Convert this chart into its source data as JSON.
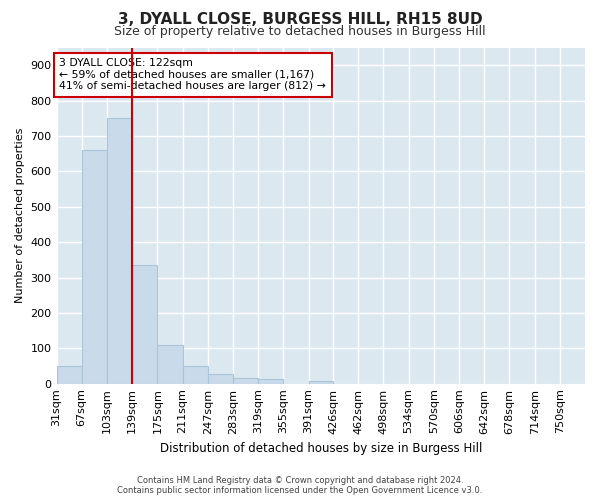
{
  "title_line1": "3, DYALL CLOSE, BURGESS HILL, RH15 8UD",
  "title_line2": "Size of property relative to detached houses in Burgess Hill",
  "xlabel": "Distribution of detached houses by size in Burgess Hill",
  "ylabel": "Number of detached properties",
  "bin_edges": [
    31,
    67,
    103,
    139,
    175,
    211,
    247,
    283,
    319,
    355,
    391,
    426,
    462,
    498,
    534,
    570,
    606,
    642,
    678,
    714,
    750,
    786
  ],
  "bin_labels": [
    "31sqm",
    "67sqm",
    "103sqm",
    "139sqm",
    "175sqm",
    "211sqm",
    "247sqm",
    "283sqm",
    "319sqm",
    "355sqm",
    "391sqm",
    "426sqm",
    "462sqm",
    "498sqm",
    "534sqm",
    "570sqm",
    "606sqm",
    "642sqm",
    "678sqm",
    "714sqm",
    "750sqm"
  ],
  "bar_values": [
    50,
    660,
    750,
    335,
    108,
    50,
    27,
    15,
    12,
    0,
    8,
    0,
    0,
    0,
    0,
    0,
    0,
    0,
    0,
    0,
    0
  ],
  "bar_color": "#c9daea",
  "bar_edge_color": "#aac4d8",
  "vline_position": 3,
  "vline_color": "#cc0000",
  "annotation_text": "3 DYALL CLOSE: 122sqm\n← 59% of detached houses are smaller (1,167)\n41% of semi-detached houses are larger (812) →",
  "annotation_box_facecolor": "#ffffff",
  "annotation_box_edgecolor": "#cc0000",
  "ylim": [
    0,
    950
  ],
  "yticks": [
    0,
    100,
    200,
    300,
    400,
    500,
    600,
    700,
    800,
    900
  ],
  "background_color": "#dce8f0",
  "grid_color": "#ffffff",
  "title_fontsize": 11,
  "subtitle_fontsize": 9,
  "footnote": "Contains HM Land Registry data © Crown copyright and database right 2024.\nContains public sector information licensed under the Open Government Licence v3.0."
}
